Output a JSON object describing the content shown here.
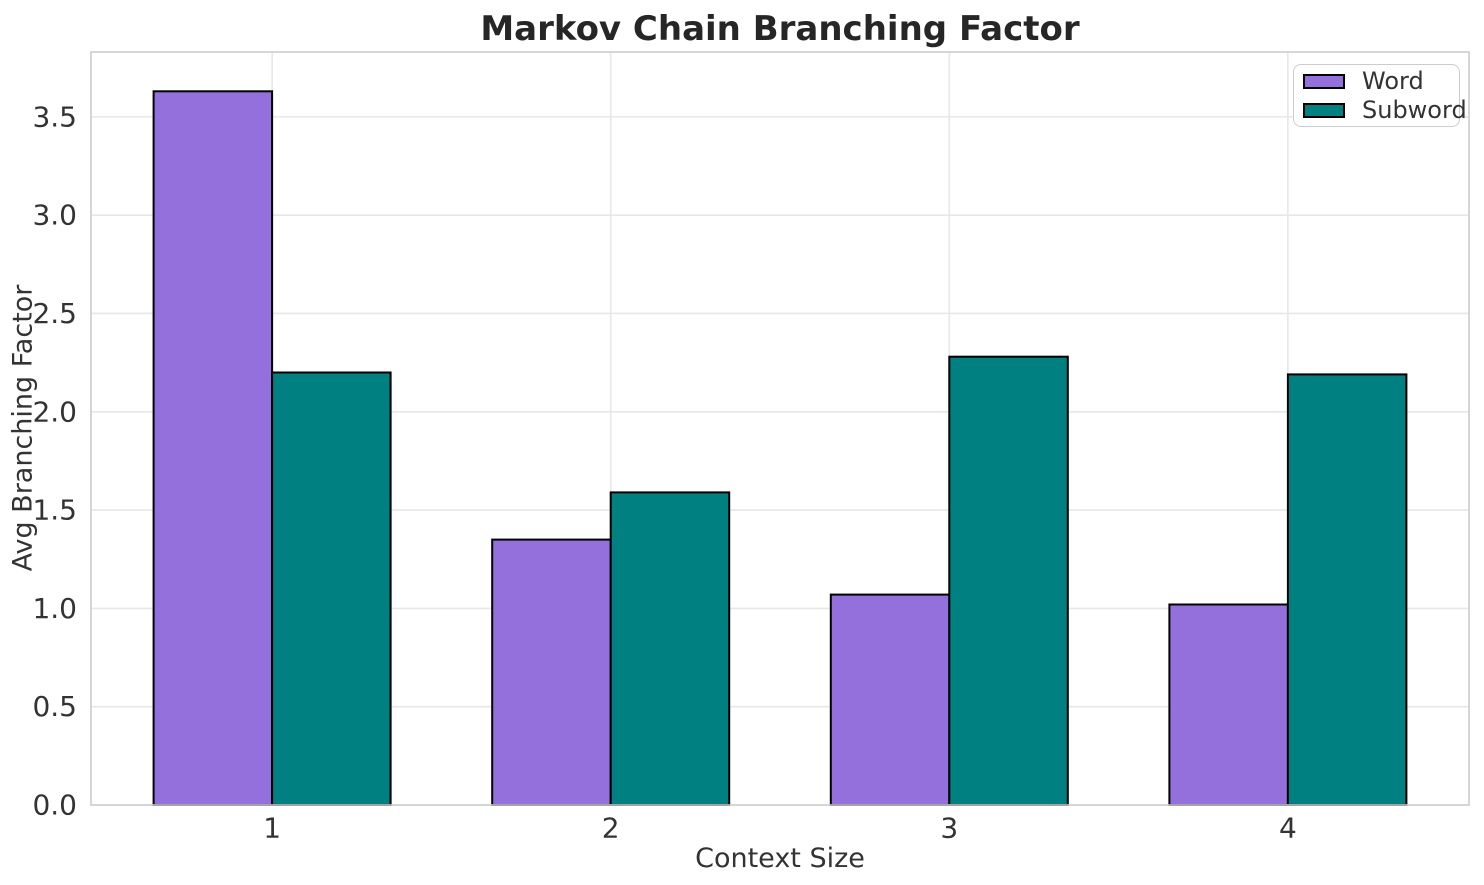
{
  "chart_data": {
    "type": "bar",
    "title": "Markov Chain Branching Factor",
    "xlabel": "Context Size",
    "ylabel": "Avg Branching Factor",
    "categories": [
      "1",
      "2",
      "3",
      "4"
    ],
    "x": [
      1,
      2,
      3,
      4
    ],
    "series": [
      {
        "name": "Word",
        "color": "#9370DB",
        "values": [
          3.63,
          1.35,
          1.07,
          1.02
        ]
      },
      {
        "name": "Subword",
        "color": "#008080",
        "values": [
          2.2,
          1.59,
          2.28,
          2.19
        ]
      }
    ],
    "bar_width": 0.35,
    "bar_edge_color": "#000000",
    "xlim": [
      0.465,
      4.535
    ],
    "ylim": [
      0,
      3.83
    ],
    "yticks": [
      "0.0",
      "0.5",
      "1.0",
      "1.5",
      "2.0",
      "2.5",
      "3.0",
      "3.5"
    ],
    "grid": true,
    "grid_color": "#e7e7e7",
    "spine_color": "#cccccc",
    "tick_color": "#333333",
    "legend": {
      "position": "upper right"
    }
  }
}
